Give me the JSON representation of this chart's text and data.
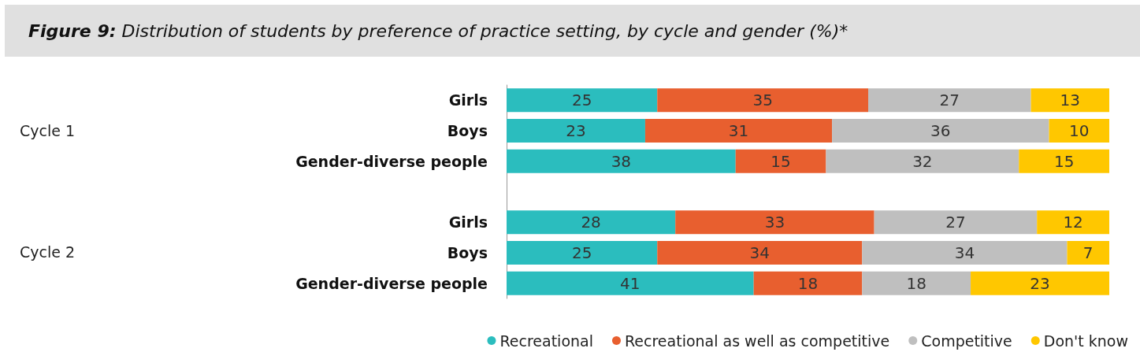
{
  "chart_data": {
    "type": "bar",
    "orientation": "horizontal",
    "stacked": true,
    "title": "Figure 9: Distribution of students by preference of practice setting, by cycle and gender (%)*",
    "categories": [
      "Girls",
      "Boys",
      "Gender-diverse people",
      null,
      "Girls",
      "Boys",
      "Gender-diverse people"
    ],
    "series": [
      {
        "name": "Recreational",
        "color": "#2bbdbe",
        "values": [
          25,
          23,
          38,
          null,
          28,
          25,
          41
        ]
      },
      {
        "name": "Recreational as well as competitive",
        "color": "#e85f2f",
        "values": [
          35,
          31,
          15,
          null,
          33,
          34,
          18
        ]
      },
      {
        "name": "Competitive",
        "color": "#bfbfbf",
        "values": [
          27,
          36,
          32,
          null,
          27,
          34,
          18
        ]
      },
      {
        "name": "Don't know",
        "color": "#ffc700",
        "values": [
          13,
          10,
          15,
          null,
          12,
          7,
          23
        ]
      }
    ],
    "annotations": [
      "Cycle 1",
      "Cycle 2"
    ],
    "xlim": [
      0,
      100
    ],
    "tick_labels": "y",
    "data_labels": true,
    "grid": false,
    "legend": "bottom right"
  }
}
